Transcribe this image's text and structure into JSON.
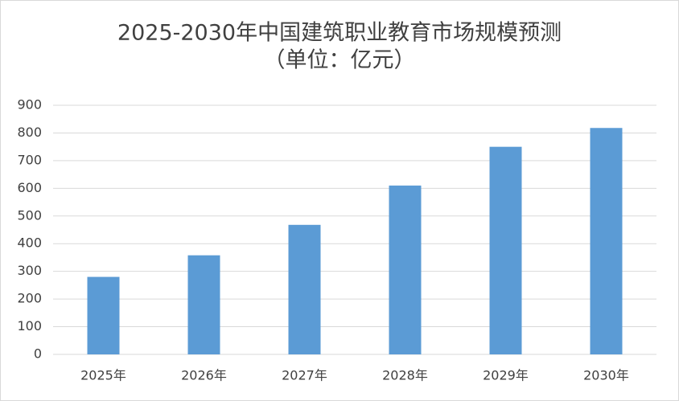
{
  "chart_data": {
    "type": "bar",
    "title": "2025-2030年中国建筑职业教育市场规模预测",
    "subtitle": "（单位：亿元）",
    "categories": [
      "2025年",
      "2026年",
      "2027年",
      "2028年",
      "2029年",
      "2030年"
    ],
    "values": [
      280,
      358,
      468,
      610,
      750,
      818
    ],
    "color": "#5b9bd5",
    "ylim": [
      0,
      900
    ],
    "yticks": [
      0,
      100,
      200,
      300,
      400,
      500,
      600,
      700,
      800,
      900
    ],
    "grid": true
  }
}
